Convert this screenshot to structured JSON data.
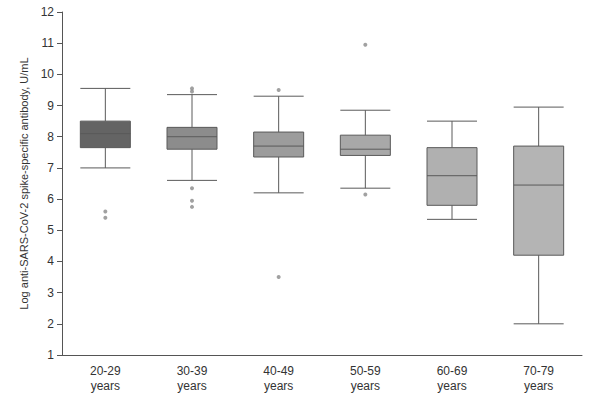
{
  "chart_data": {
    "type": "boxplot",
    "y_label": "Log anti-SARS-CoV-2 spike-specific antibody, U/mL",
    "categories": [
      "20-29 years",
      "30-39 years",
      "40-49 years",
      "50-59 years",
      "60-69 years",
      "70-79 years"
    ],
    "values": [
      [
        7.0,
        7.65,
        8.1,
        8.5,
        9.55
      ],
      [
        6.6,
        7.6,
        8.0,
        8.3,
        9.35
      ],
      [
        6.2,
        7.35,
        7.7,
        8.15,
        9.3
      ],
      [
        6.35,
        7.4,
        7.6,
        8.05,
        8.85
      ],
      [
        5.35,
        5.8,
        6.75,
        7.65,
        8.5
      ],
      [
        2.0,
        4.2,
        6.45,
        7.7,
        8.95
      ]
    ],
    "outliers": [
      [
        5.6,
        5.4
      ],
      [
        9.55,
        9.45,
        6.35,
        5.95,
        5.75
      ],
      [
        9.5,
        3.5
      ],
      [
        10.95,
        6.15
      ],
      [],
      []
    ],
    "colors": [
      "#646464",
      "#8c8c8c",
      "#9c9c9c",
      "#a8a8a8",
      "#b0b0b0",
      "#b4b4b4"
    ],
    "ylim": [
      1,
      12
    ],
    "yticks": [
      1,
      2,
      3,
      4,
      5,
      6,
      7,
      8,
      9,
      10,
      11,
      12
    ],
    "grid": false
  }
}
